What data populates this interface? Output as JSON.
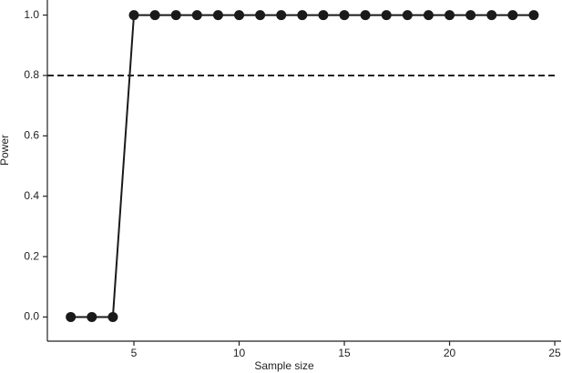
{
  "chart_data": {
    "type": "line",
    "x_label": "Sample size",
    "y_label": "Power",
    "x": [
      2,
      3,
      4,
      5,
      6,
      7,
      8,
      9,
      10,
      11,
      12,
      13,
      14,
      15,
      16,
      17,
      18,
      19,
      20,
      21,
      22,
      23,
      24
    ],
    "series": [
      {
        "color": "#1a1a1a",
        "values": [
          0,
          0,
          0,
          1,
          1,
          1,
          1,
          1,
          1,
          1,
          1,
          1,
          1,
          1,
          1,
          1,
          1,
          1,
          1,
          1,
          1,
          1,
          1
        ]
      }
    ],
    "reference_line": 0.8,
    "xlim": [
      1,
      25.3
    ],
    "xticks": [
      5,
      10,
      15,
      20,
      25
    ],
    "ylim": [
      -0.08,
      1.05
    ],
    "yticks": [
      {
        "value": 0,
        "label": "0.0"
      },
      {
        "value": 0.2,
        "label": "0.2"
      },
      {
        "value": 0.4,
        "label": "0.4"
      },
      {
        "value": 0.6,
        "label": "0.6"
      },
      {
        "value": 0.8,
        "label": "0.8"
      },
      {
        "value": 1,
        "label": "1.0"
      }
    ]
  }
}
